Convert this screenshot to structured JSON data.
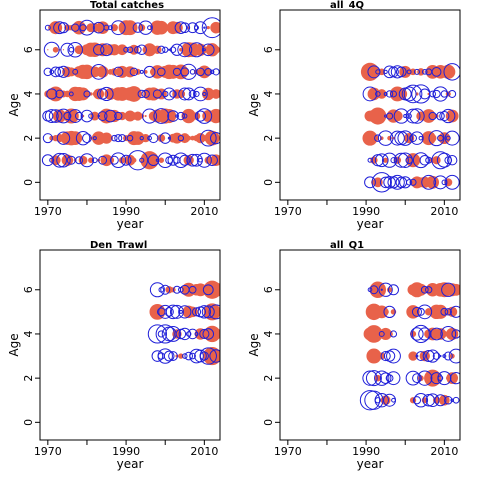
{
  "colors": {
    "positive": "#E8624A",
    "negative": "#1F1FD8",
    "axis": "#000000"
  },
  "chart_data": [
    {
      "type": "scatter",
      "title": "Total catches",
      "xlabel": "year",
      "ylabel": "Age",
      "xlim": [
        1968,
        2014
      ],
      "ylim": [
        -0.8,
        7.8
      ],
      "x_ticks": [
        "1970",
        "1990",
        "2010"
      ],
      "x_tick_values": [
        1970,
        1990,
        2010
      ],
      "y_ticks": [
        "0",
        "2",
        "4",
        "6"
      ],
      "y_tick_values": [
        0,
        2,
        4,
        6
      ],
      "years": [
        1970,
        2013
      ],
      "ages": [
        1,
        2,
        3,
        4,
        5,
        6,
        7
      ],
      "seed": 11,
      "big": [
        [
          1,
          1993,
          -1.8
        ],
        [
          1,
          1996,
          1.6
        ],
        [
          4,
          1992,
          1.2
        ],
        [
          2,
          2011,
          -1.2
        ],
        [
          7,
          2012,
          -1.9
        ],
        [
          6,
          2007,
          1.0
        ],
        [
          3,
          2006,
          1.0
        ]
      ]
    },
    {
      "type": "scatter",
      "title": "all_4Q",
      "xlabel": "year",
      "ylabel": "Age",
      "xlim": [
        1968,
        2014
      ],
      "ylim": [
        -0.8,
        7.8
      ],
      "x_ticks": [
        "1970",
        "1990",
        "2010"
      ],
      "x_tick_values": [
        1970,
        1990,
        2010
      ],
      "y_ticks": [
        "0",
        "2",
        "4",
        "6"
      ],
      "y_tick_values": [
        0,
        2,
        4,
        6
      ],
      "years": [
        1991,
        2012
      ],
      "ages": [
        0,
        1,
        2,
        3,
        4,
        5
      ],
      "seed": 23,
      "big": [
        [
          0,
          1994,
          -1.8
        ],
        [
          5,
          1991,
          1.6
        ],
        [
          3,
          1993,
          1.4
        ],
        [
          4,
          2004,
          -1.6
        ],
        [
          4,
          2002,
          -1.5
        ],
        [
          1,
          2009,
          -1.4
        ],
        [
          5,
          2012,
          -1.3
        ]
      ]
    },
    {
      "type": "scatter",
      "title": "Den_Trawl",
      "xlabel": "year",
      "ylabel": "Age",
      "xlim": [
        1968,
        2014
      ],
      "ylim": [
        -0.8,
        7.8
      ],
      "x_ticks": [
        "1970",
        "1990",
        "2010"
      ],
      "x_tick_values": [
        1970,
        1990,
        2010
      ],
      "y_ticks": [
        "0",
        "2",
        "4",
        "6"
      ],
      "y_tick_values": [
        0,
        2,
        4,
        6
      ],
      "years": [
        1998,
        2013
      ],
      "ages": [
        3,
        4,
        5,
        6
      ],
      "seed": 37,
      "big": [
        [
          4,
          1998,
          -1.6
        ],
        [
          4,
          2000,
          -1.6
        ],
        [
          3,
          2012,
          1.6
        ],
        [
          6,
          2012,
          1.6
        ],
        [
          5,
          1998,
          1.2
        ],
        [
          5,
          2012,
          1.4
        ],
        [
          4,
          2012,
          1.3
        ],
        [
          3,
          2011,
          -1.3
        ]
      ]
    },
    {
      "type": "scatter",
      "title": "all_Q1",
      "xlabel": "year",
      "ylabel": "Age",
      "xlim": [
        1968,
        2014
      ],
      "ylim": [
        -0.8,
        7.8
      ],
      "x_ticks": [
        "1970",
        "1990",
        "2010"
      ],
      "x_tick_values": [
        1970,
        1990,
        2010
      ],
      "y_ticks": [
        "0",
        "2",
        "4",
        "6"
      ],
      "y_tick_values": [
        0,
        2,
        4,
        6
      ],
      "years": [
        1991,
        2013
      ],
      "ages": [
        1,
        2,
        3,
        4,
        5,
        6
      ],
      "seed": 53,
      "gap": [
        1997,
        2002
      ],
      "big": [
        [
          1,
          1991,
          -1.8
        ],
        [
          1,
          1992,
          -1.6
        ],
        [
          4,
          1992,
          1.5
        ],
        [
          6,
          1993,
          1.3
        ],
        [
          5,
          1992,
          1.3
        ],
        [
          4,
          2004,
          -1.4
        ],
        [
          2,
          2007,
          1.4
        ]
      ]
    }
  ]
}
